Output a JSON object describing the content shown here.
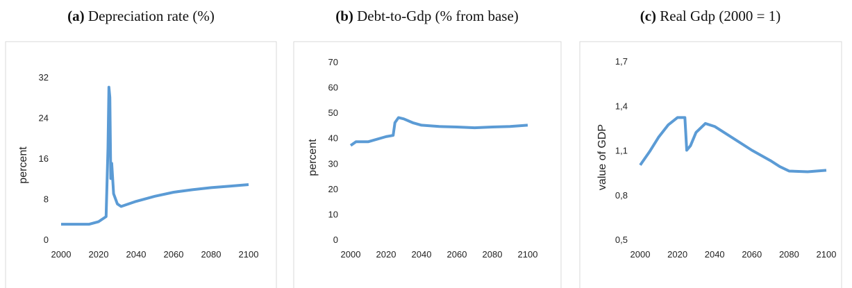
{
  "chart_data": [
    {
      "type": "line",
      "panel": "(a)",
      "title": "Depreciation rate (%)",
      "y_label": "percent",
      "x": [
        2000,
        2015,
        2020,
        2024,
        2025,
        2025.5,
        2026,
        2026.5,
        2027,
        2028,
        2030,
        2032,
        2040,
        2050,
        2060,
        2070,
        2080,
        2090,
        2100
      ],
      "series": [
        {
          "name": "Depreciation rate",
          "color": "#5b9bd5",
          "values": [
            3,
            3,
            3.5,
            4.5,
            18,
            30,
            28,
            12,
            15,
            9,
            7,
            6.5,
            7.5,
            8.5,
            9.3,
            9.8,
            10.2,
            10.5,
            10.8
          ]
        }
      ],
      "xlim": [
        2000,
        2100
      ],
      "xticks": [
        2000,
        2020,
        2040,
        2060,
        2080,
        2100
      ],
      "ylim": [
        0,
        32
      ],
      "yticks": [
        0,
        8,
        16,
        24,
        32
      ],
      "grid": false
    },
    {
      "type": "line",
      "panel": "(b)",
      "title": "Debt-to-Gdp (% from base)",
      "y_label": "percent",
      "x": [
        2000,
        2003,
        2010,
        2020,
        2024,
        2025,
        2027,
        2030,
        2035,
        2040,
        2050,
        2060,
        2070,
        2080,
        2090,
        2100
      ],
      "series": [
        {
          "name": "Debt-to-Gdp",
          "color": "#5b9bd5",
          "values": [
            37,
            38.5,
            38.5,
            40.5,
            41,
            46,
            48,
            47.5,
            46,
            45,
            44.5,
            44.3,
            44,
            44.3,
            44.5,
            45
          ]
        }
      ],
      "xlim": [
        2000,
        2100
      ],
      "xticks": [
        2000,
        2020,
        2040,
        2060,
        2080,
        2100
      ],
      "ylim": [
        0,
        70
      ],
      "yticks": [
        0,
        10,
        20,
        30,
        40,
        50,
        60,
        70
      ],
      "grid": false
    },
    {
      "type": "line",
      "panel": "(c)",
      "title": "Real Gdp (2000 = 1)",
      "y_label": "value of GDP",
      "x": [
        2000,
        2005,
        2010,
        2015,
        2020,
        2024,
        2025,
        2027,
        2030,
        2035,
        2040,
        2050,
        2060,
        2070,
        2075,
        2080,
        2090,
        2100
      ],
      "series": [
        {
          "name": "Real Gdp",
          "color": "#5b9bd5",
          "values": [
            1.0,
            1.09,
            1.19,
            1.27,
            1.32,
            1.32,
            1.1,
            1.13,
            1.22,
            1.28,
            1.26,
            1.18,
            1.1,
            1.03,
            0.99,
            0.96,
            0.955,
            0.965
          ]
        }
      ],
      "xlim": [
        2000,
        2100
      ],
      "xticks": [
        2000,
        2020,
        2040,
        2060,
        2080,
        2100
      ],
      "ylim": [
        0.5,
        1.7
      ],
      "yticks": [
        {
          "value": 0.5,
          "label": "0,5"
        },
        {
          "value": 0.8,
          "label": "0,8"
        },
        {
          "value": 1.1,
          "label": "1,1"
        },
        {
          "value": 1.4,
          "label": "1,4"
        },
        {
          "value": 1.7,
          "label": "1,7"
        }
      ],
      "grid": false
    }
  ]
}
